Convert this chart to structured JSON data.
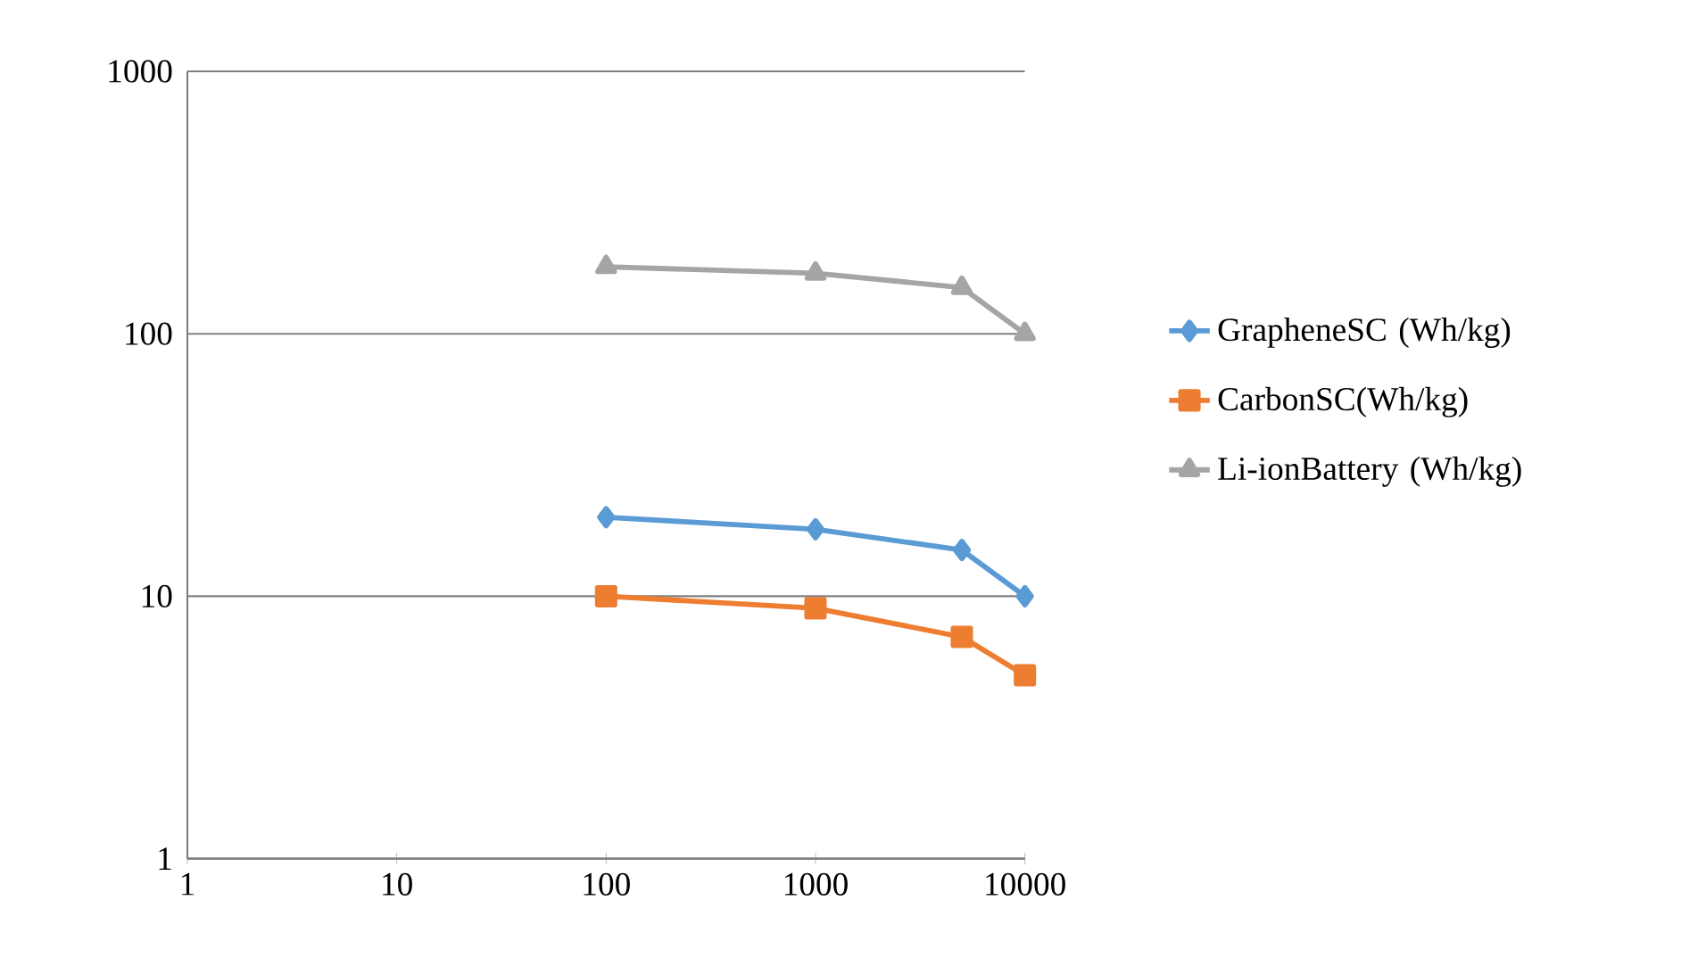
{
  "chart_data": {
    "type": "line",
    "log": "xy",
    "grid": "y",
    "legend": "right",
    "x": [
      100,
      1000,
      5000,
      10000
    ],
    "series": [
      {
        "name": "GrapheneSC (Wh/kg)",
        "color": "#5b9bd5",
        "marker": "diamond",
        "values": [
          20,
          18,
          15,
          10
        ]
      },
      {
        "name": "CarbonSC(Wh/kg)",
        "color": "#ed7d31",
        "marker": "square",
        "values": [
          10,
          9,
          7,
          5
        ]
      },
      {
        "name": "Li-ionBattery (Wh/kg)",
        "color": "#a5a5a5",
        "marker": "triangle",
        "values": [
          180,
          170,
          150,
          100
        ]
      }
    ],
    "xlim": [
      1,
      10000
    ],
    "xticks": [
      1,
      10,
      100,
      1000,
      10000
    ],
    "ylim": [
      1,
      1000
    ],
    "yticks": [
      1,
      10,
      100,
      1000
    ]
  }
}
